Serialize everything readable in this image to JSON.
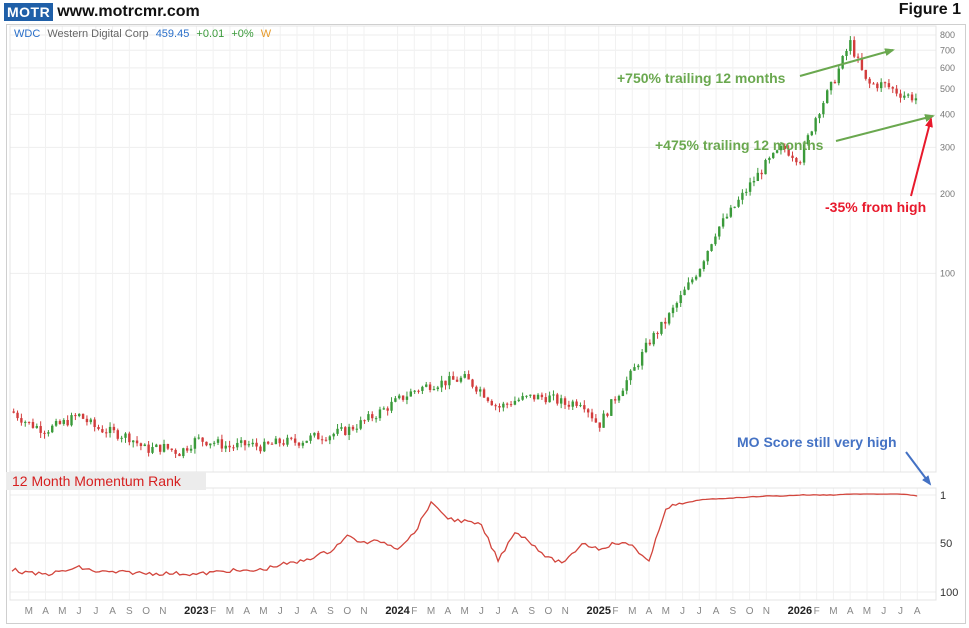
{
  "header": {
    "logo_text": "MOTR",
    "site_url": "www.motrcmr.com",
    "figure_label": "Figure 1"
  },
  "ticker": {
    "symbol": "WDC",
    "name": "Western Digital Corp",
    "price": "459.45",
    "change": "+0.01",
    "change_pct": "+0%",
    "interval": "W"
  },
  "annotations": {
    "trailing_750": "+750% trailing 12 months",
    "trailing_475": "+475% trailing 12 months",
    "from_high": "-35% from high",
    "mo_score": "MO Score still very high",
    "panel_label": "12 Month Momentum Rank"
  },
  "colors": {
    "up": "#3a9a3a",
    "down": "#d23c3c",
    "green_note": "#6aa84f",
    "red_note": "#e8192c",
    "blue_note": "#4472c4",
    "rank_line": "#d2453c"
  },
  "chart_data": [
    {
      "type": "candlestick",
      "title": "WDC Western Digital Corp",
      "y_scale": "log",
      "y_ticks": [
        "800",
        "700",
        "600",
        "500",
        "400",
        "300",
        "200",
        "100"
      ],
      "x_tick_labels": [
        "M",
        "A",
        "M",
        "J",
        "J",
        "A",
        "S",
        "O",
        "N",
        "2023",
        "F",
        "M",
        "A",
        "M",
        "J",
        "J",
        "A",
        "S",
        "O",
        "N",
        "2024",
        "F",
        "M",
        "A",
        "M",
        "J",
        "J",
        "A",
        "S",
        "O",
        "N",
        "2025",
        "F",
        "M",
        "A",
        "M",
        "J",
        "J",
        "A",
        "S",
        "O",
        "N",
        "2026",
        "F",
        "M",
        "A",
        "M",
        "J",
        "J",
        "A"
      ],
      "x_tick_month_index": [
        0,
        1,
        2,
        3,
        4,
        5,
        6,
        7,
        8,
        10,
        11,
        12,
        13,
        14,
        15,
        16,
        17,
        18,
        19,
        20,
        22,
        23,
        24,
        25,
        26,
        27,
        28,
        29,
        30,
        31,
        32,
        34,
        35,
        36,
        37,
        38,
        39,
        40,
        41,
        42,
        43,
        44,
        46,
        47,
        48,
        49,
        50,
        51,
        52,
        53
      ],
      "x_month_range": [
        -1,
        54
      ],
      "price_path": [
        [
          -1,
          30
        ],
        [
          0,
          27
        ],
        [
          1,
          25.5
        ],
        [
          2,
          27
        ],
        [
          3,
          29
        ],
        [
          4,
          26
        ],
        [
          5,
          25
        ],
        [
          6,
          24
        ],
        [
          7,
          21.5
        ],
        [
          8,
          22
        ],
        [
          9,
          21
        ],
        [
          10,
          23.5
        ],
        [
          11,
          23
        ],
        [
          12,
          22
        ],
        [
          13,
          22.5
        ],
        [
          14,
          22
        ],
        [
          15,
          23
        ],
        [
          16,
          23
        ],
        [
          17,
          24
        ],
        [
          18,
          24.5
        ],
        [
          19,
          25.5
        ],
        [
          20,
          27.5
        ],
        [
          21,
          30
        ],
        [
          22,
          33
        ],
        [
          23,
          36
        ],
        [
          24,
          38
        ],
        [
          25,
          39
        ],
        [
          26,
          40
        ],
        [
          27,
          36
        ],
        [
          28,
          31
        ],
        [
          29,
          33
        ],
        [
          30,
          34
        ],
        [
          31,
          34
        ],
        [
          32,
          32
        ],
        [
          33,
          33
        ],
        [
          34,
          26.5
        ],
        [
          35,
          34
        ],
        [
          36,
          42
        ],
        [
          37,
          55
        ],
        [
          38,
          66
        ],
        [
          39,
          83
        ],
        [
          40,
          105
        ],
        [
          41,
          145
        ],
        [
          42,
          175
        ],
        [
          43,
          215
        ],
        [
          44,
          260
        ],
        [
          45,
          300
        ],
        [
          46,
          270
        ],
        [
          47,
          400
        ],
        [
          48,
          530
        ],
        [
          49,
          750
        ],
        [
          50,
          520
        ],
        [
          51,
          520
        ],
        [
          52,
          480
        ],
        [
          53,
          460
        ]
      ]
    },
    {
      "type": "line",
      "title": "12 Month Momentum Rank",
      "y_ticks": [
        "1",
        "50",
        "100"
      ],
      "y_inverted": true,
      "rank_path": [
        [
          -1,
          77
        ],
        [
          0,
          81
        ],
        [
          1,
          82
        ],
        [
          2,
          79
        ],
        [
          3,
          75
        ],
        [
          4,
          79
        ],
        [
          5,
          80
        ],
        [
          6,
          80
        ],
        [
          7,
          81
        ],
        [
          8,
          81
        ],
        [
          9,
          81
        ],
        [
          10,
          82
        ],
        [
          11,
          80
        ],
        [
          12,
          78
        ],
        [
          13,
          79
        ],
        [
          14,
          77
        ],
        [
          15,
          72
        ],
        [
          16,
          70
        ],
        [
          17,
          64
        ],
        [
          18,
          58
        ],
        [
          19,
          43
        ],
        [
          20,
          50
        ],
        [
          21,
          48
        ],
        [
          22,
          55
        ],
        [
          23,
          40
        ],
        [
          24,
          8
        ],
        [
          25,
          25
        ],
        [
          26,
          28
        ],
        [
          27,
          32
        ],
        [
          28,
          68
        ],
        [
          29,
          38
        ],
        [
          30,
          50
        ],
        [
          31,
          66
        ],
        [
          32,
          70
        ],
        [
          33,
          50
        ],
        [
          34,
          56
        ],
        [
          35,
          50
        ],
        [
          36,
          52
        ],
        [
          37,
          70
        ],
        [
          38,
          14
        ],
        [
          39,
          10
        ],
        [
          40,
          6
        ],
        [
          41,
          5
        ],
        [
          42,
          4
        ],
        [
          43,
          3
        ],
        [
          44,
          2
        ],
        [
          45,
          2
        ],
        [
          46,
          1
        ],
        [
          47,
          1
        ],
        [
          48,
          1
        ],
        [
          49,
          0
        ],
        [
          50,
          0
        ],
        [
          51,
          0
        ],
        [
          52,
          0
        ],
        [
          53,
          2
        ]
      ]
    }
  ]
}
